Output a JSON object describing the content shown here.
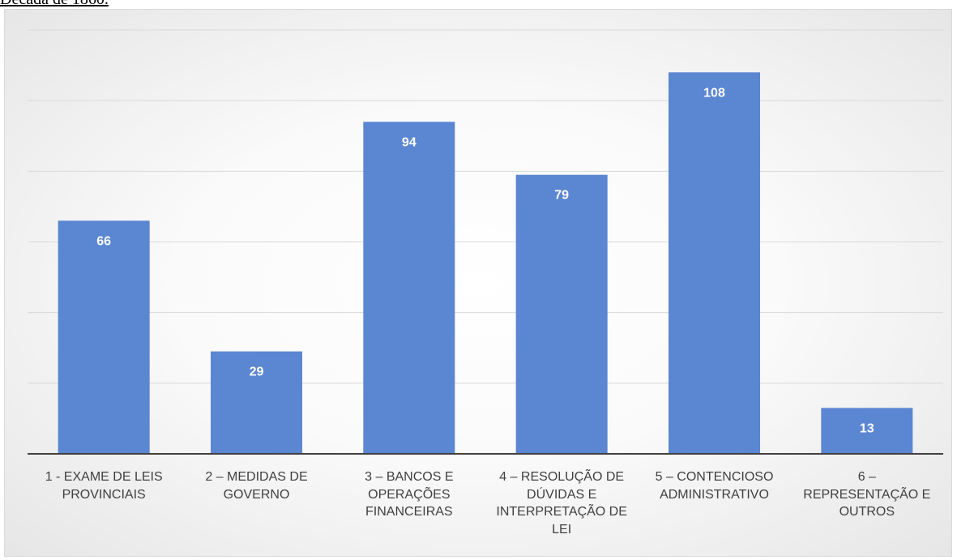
{
  "caption": "Década de 1860.",
  "chart_data": {
    "type": "bar",
    "categories": [
      "1 - EXAME DE LEIS\nPROVINCIAIS",
      "2 – MEDIDAS DE\nGOVERNO",
      "3 – BANCOS E\nOPERAÇÕES\nFINANCEIRAS",
      "4 – RESOLUÇÃO DE\nDÚVIDAS E\nINTERPRETAÇÃO DE\nLEI",
      "5 – CONTENCIOSO\nADMINISTRATIVO",
      "6 –\nREPRESENTAÇÃO E\nOUTROS"
    ],
    "values": [
      66,
      29,
      94,
      79,
      108,
      13
    ],
    "data_labels": [
      "66",
      "29",
      "94",
      "79",
      "108",
      "13"
    ],
    "ylim": [
      0,
      120
    ],
    "gridlines": true,
    "legend": false,
    "colors": {
      "bar": "#5b86d1",
      "label": "#ffffff",
      "grid": "#d9d9d9",
      "axis": "#404040"
    }
  }
}
